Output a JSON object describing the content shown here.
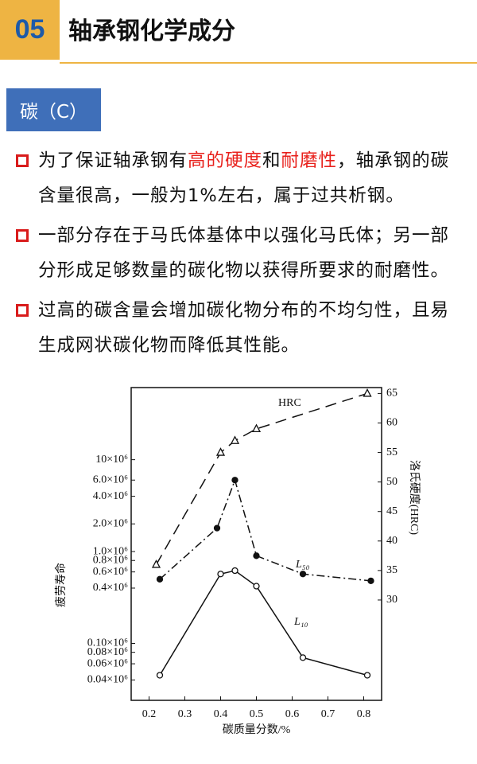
{
  "header": {
    "number": "05",
    "title": "轴承钢化学成分"
  },
  "section": {
    "label": "碳（C）"
  },
  "bullets": [
    {
      "segments": [
        {
          "text": "为了保证轴承钢有"
        },
        {
          "text": "高的硬度",
          "color": "#e8211c"
        },
        {
          "text": "和"
        },
        {
          "text": "耐磨性",
          "color": "#e8211c"
        },
        {
          "text": "，轴承钢的碳含量很高，一般为1%左右，属于过共析钢。"
        }
      ]
    },
    {
      "segments": [
        {
          "text": "一部分存在于马氏体基体中以强化马氏体；另一部分形成足够数量的碳化物以获得所要求的耐磨性。"
        }
      ]
    },
    {
      "segments": [
        {
          "text": "过高的碳含量会增加碳化物分布的不均匀性，且易生成网状碳化物而降低其性能。"
        }
      ]
    }
  ],
  "chart_data": {
    "type": "line",
    "x_label": "碳质量分数/%",
    "y_label": "疲劳寿命",
    "y2_label": "洛氏硬度(HRC)",
    "xlim": [
      0.15,
      0.85
    ],
    "xticks": [
      0.2,
      0.3,
      0.4,
      0.5,
      0.6,
      0.7,
      0.8
    ],
    "ylog": true,
    "ylim": [
      24000,
      61000000
    ],
    "yticks": [
      {
        "value": 10000000,
        "label": "10×10⁶"
      },
      {
        "value": 6000000,
        "label": "6.0×10⁶"
      },
      {
        "value": 4000000,
        "label": "4.0×10⁶"
      },
      {
        "value": 2000000,
        "label": "2.0×10⁶"
      },
      {
        "value": 1000000,
        "label": "1.0×10⁶"
      },
      {
        "value": 800000,
        "label": "0.8×10⁶"
      },
      {
        "value": 600000,
        "label": "0.6×10⁶"
      },
      {
        "value": 400000,
        "label": "0.4×10⁶"
      },
      {
        "value": 100000,
        "label": "0.10×10⁶"
      },
      {
        "value": 80000,
        "label": "0.08×10⁶"
      },
      {
        "value": 60000,
        "label": "0.06×10⁶"
      },
      {
        "value": 40000,
        "label": "0.04×10⁶"
      }
    ],
    "y2lim": [
      13,
      66
    ],
    "y2ticks": [
      30,
      35,
      40,
      45,
      50,
      55,
      60,
      65
    ],
    "series": [
      {
        "name": "HRC",
        "axis": "y2",
        "color": "#111111",
        "line_style": "dashed",
        "marker": "triangle-open",
        "x": [
          0.22,
          0.4,
          0.44,
          0.5,
          0.81
        ],
        "values": [
          36,
          55,
          57,
          59,
          65
        ]
      },
      {
        "name": "L₅₀",
        "color": "#111111",
        "line_style": "dashdot",
        "marker": "circle-filled",
        "x": [
          0.23,
          0.39,
          0.44,
          0.5,
          0.63,
          0.82
        ],
        "values": [
          500000,
          1800000,
          6000000,
          900000,
          570000,
          480000
        ]
      },
      {
        "name": "L₁₀",
        "color": "#111111",
        "line_style": "solid",
        "marker": "circle-open",
        "x": [
          0.23,
          0.4,
          0.44,
          0.5,
          0.63,
          0.81
        ],
        "values": [
          45000,
          570000,
          620000,
          420000,
          70000,
          45000
        ]
      }
    ]
  }
}
